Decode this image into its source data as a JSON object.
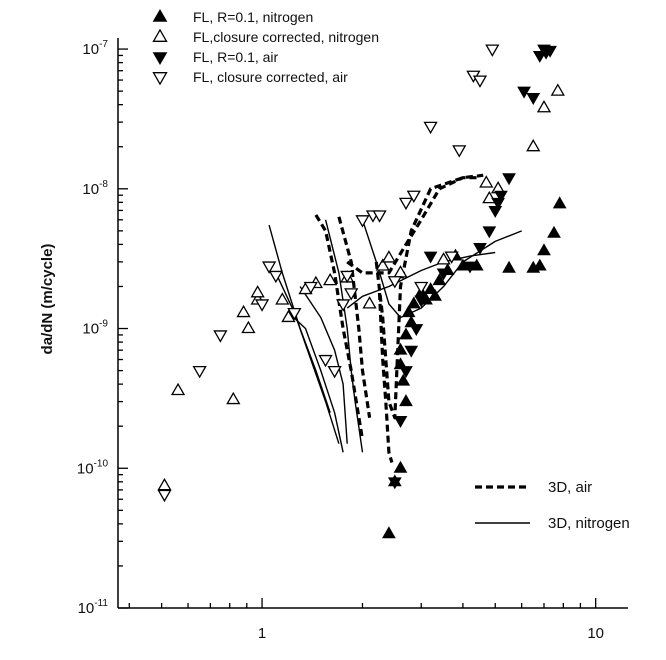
{
  "chart_data": {
    "type": "scatter",
    "title": "",
    "xlabel": "",
    "ylabel": "da/dN (m/cycle)",
    "xscale": "log",
    "yscale": "log",
    "xlim": [
      0.37,
      12.5
    ],
    "ylim": [
      1e-11,
      1.2e-07
    ],
    "x_ticks": [
      {
        "value": 1,
        "label": "1"
      },
      {
        "value": 10,
        "label": "10"
      }
    ],
    "y_ticks": [
      {
        "value": 1e-11,
        "base": "10",
        "exp": "-11"
      },
      {
        "value": 1e-10,
        "base": "10",
        "exp": "-10"
      },
      {
        "value": 1e-09,
        "base": "10",
        "exp": "-9"
      },
      {
        "value": 1e-08,
        "base": "10",
        "exp": "-8"
      },
      {
        "value": 1e-07,
        "base": "10",
        "exp": "-7"
      }
    ],
    "grid": false,
    "legend_placement": "top-left",
    "series": [
      {
        "name": "FL, R=0.1, nitrogen",
        "marker": "triangle-up-filled",
        "points": [
          [
            2.4,
            3.4e-11
          ],
          [
            2.5,
            8e-11
          ],
          [
            2.6,
            1e-10
          ],
          [
            2.65,
            4.2e-10
          ],
          [
            2.7,
            3e-10
          ],
          [
            2.6,
            5.5e-10
          ],
          [
            2.6,
            7e-10
          ],
          [
            2.7,
            9e-10
          ],
          [
            2.8,
            1.1e-09
          ],
          [
            2.75,
            1.3e-09
          ],
          [
            2.85,
            1.5e-09
          ],
          [
            3.0,
            1.8e-09
          ],
          [
            3.1,
            1.6e-09
          ],
          [
            3.2,
            1.9e-09
          ],
          [
            3.3,
            1.7e-09
          ],
          [
            3.4,
            2.2e-09
          ],
          [
            3.6,
            2.6e-09
          ],
          [
            3.8,
            3.3e-09
          ],
          [
            4.0,
            2.8e-09
          ],
          [
            4.4,
            2.8e-09
          ],
          [
            5.5,
            2.7e-09
          ],
          [
            6.5,
            2.7e-09
          ],
          [
            6.8,
            2.8e-09
          ],
          [
            7.0,
            3.6e-09
          ],
          [
            7.5,
            4.8e-09
          ],
          [
            7.8,
            7.8e-09
          ]
        ]
      },
      {
        "name": "FL,closure corrected, nitrogen",
        "marker": "triangle-up-open",
        "points": [
          [
            0.51,
            7.5e-11
          ],
          [
            0.56,
            3.6e-10
          ],
          [
            0.82,
            3.1e-10
          ],
          [
            0.88,
            1.3e-09
          ],
          [
            0.91,
            1e-09
          ],
          [
            0.97,
            1.6e-09
          ],
          [
            0.97,
            1.8e-09
          ],
          [
            1.15,
            1.6e-09
          ],
          [
            1.2,
            1.2e-09
          ],
          [
            1.35,
            1.9e-09
          ],
          [
            1.45,
            2.1e-09
          ],
          [
            1.6,
            2.2e-09
          ],
          [
            1.8,
            2.3e-09
          ],
          [
            2.1,
            1.5e-09
          ],
          [
            2.3,
            2.8e-09
          ],
          [
            2.4,
            3.2e-09
          ],
          [
            2.6,
            2.5e-09
          ],
          [
            3.5,
            3.1e-09
          ],
          [
            4.8,
            8.5e-09
          ],
          [
            4.7,
            1.1e-08
          ],
          [
            5.1,
            1e-08
          ],
          [
            6.5,
            2e-08
          ],
          [
            7.0,
            3.8e-08
          ],
          [
            7.7,
            5e-08
          ]
        ]
      },
      {
        "name": "FL, R=0.1, air",
        "marker": "triangle-down-filled",
        "points": [
          [
            2.5,
            8e-11
          ],
          [
            2.6,
            2.2e-10
          ],
          [
            2.7,
            5e-10
          ],
          [
            2.8,
            7e-10
          ],
          [
            2.9,
            1e-09
          ],
          [
            3.0,
            1.6e-09
          ],
          [
            3.2,
            3.3e-09
          ],
          [
            3.5,
            2.5e-09
          ],
          [
            4.2,
            2.8e-09
          ],
          [
            4.5,
            3.8e-09
          ],
          [
            4.8,
            5e-09
          ],
          [
            5.0,
            7e-09
          ],
          [
            5.1,
            8e-09
          ],
          [
            5.2,
            9e-09
          ],
          [
            5.5,
            1.2e-08
          ],
          [
            6.1,
            5e-08
          ],
          [
            6.5,
            4.5e-08
          ],
          [
            6.8,
            9e-08
          ],
          [
            7.0,
            1e-07
          ],
          [
            7.1,
            9.5e-08
          ],
          [
            7.3,
            9.8e-08
          ]
        ]
      },
      {
        "name": "FL, closure corrected, air",
        "marker": "triangle-down-open",
        "points": [
          [
            0.51,
            6.5e-11
          ],
          [
            0.65,
            5e-10
          ],
          [
            0.75,
            9e-10
          ],
          [
            1.0,
            1.5e-09
          ],
          [
            1.05,
            2.8e-09
          ],
          [
            1.1,
            2.4e-09
          ],
          [
            1.25,
            1.3e-09
          ],
          [
            1.4,
            2e-09
          ],
          [
            1.55,
            6e-10
          ],
          [
            1.65,
            5e-10
          ],
          [
            1.75,
            1.5e-09
          ],
          [
            1.8,
            2.4e-09
          ],
          [
            1.85,
            1.8e-09
          ],
          [
            2.0,
            6e-09
          ],
          [
            2.15,
            6.5e-09
          ],
          [
            2.25,
            6.5e-09
          ],
          [
            2.5,
            2.2e-09
          ],
          [
            2.7,
            8e-09
          ],
          [
            2.85,
            9e-09
          ],
          [
            3.0,
            2e-09
          ],
          [
            3.2,
            2.8e-08
          ],
          [
            3.7,
            3.3e-09
          ],
          [
            3.9,
            1.9e-08
          ],
          [
            4.3,
            6.5e-08
          ],
          [
            4.5,
            6e-08
          ],
          [
            4.9,
            1e-07
          ]
        ]
      }
    ],
    "curves": [
      {
        "name": "3D, air",
        "style": "dashed",
        "lines": [
          [
            [
              1.45,
              6.5e-09
            ],
            [
              1.55,
              5e-09
            ],
            [
              1.65,
              2.5e-09
            ],
            [
              1.75,
              1e-09
            ],
            [
              1.85,
              5e-10
            ],
            [
              2.0,
              1.6e-10
            ]
          ],
          [
            [
              1.7,
              6.3e-09
            ],
            [
              1.85,
              3e-09
            ],
            [
              1.95,
              1e-09
            ],
            [
              2.0,
              5e-10
            ],
            [
              2.1,
              2.3e-10
            ]
          ],
          [
            [
              2.25,
              1.8e-09
            ],
            [
              2.3,
              6e-10
            ],
            [
              2.35,
              3e-10
            ],
            [
              2.4,
              1.3e-10
            ],
            [
              2.45,
              1.1e-10
            ]
          ],
          [
            [
              2.2,
              3e-09
            ],
            [
              2.3,
              1.2e-09
            ],
            [
              2.35,
              6e-10
            ],
            [
              2.4,
              3e-10
            ],
            [
              2.5,
              2.3e-10
            ],
            [
              2.6,
              2e-09
            ],
            [
              2.8,
              5e-09
            ],
            [
              3.2,
              1e-08
            ],
            [
              4.0,
              1.2e-08
            ],
            [
              4.6,
              1.25e-08
            ]
          ],
          [
            [
              1.8,
              3e-09
            ],
            [
              2.0,
              2.5e-09
            ],
            [
              2.4,
              2.5e-09
            ],
            [
              2.7,
              4e-09
            ],
            [
              3.0,
              6e-09
            ],
            [
              3.4,
              1e-08
            ],
            [
              4.0,
              1.2e-08
            ],
            [
              4.5,
              1.2e-08
            ]
          ]
        ]
      },
      {
        "name": "3D, nitrogen",
        "style": "solid",
        "lines": [
          [
            [
              1.05,
              5.5e-09
            ],
            [
              1.15,
              2.5e-09
            ],
            [
              1.3,
              1e-09
            ],
            [
              1.45,
              5e-10
            ],
            [
              1.6,
              2.5e-10
            ]
          ],
          [
            [
              1.1,
              2.5e-09
            ],
            [
              1.25,
              1.3e-09
            ],
            [
              1.4,
              6e-10
            ],
            [
              1.55,
              3e-10
            ],
            [
              1.7,
              1.5e-10
            ]
          ],
          [
            [
              1.2,
              1.3e-09
            ],
            [
              1.35,
              1e-09
            ],
            [
              1.5,
              5e-10
            ],
            [
              1.65,
              2.5e-10
            ],
            [
              1.75,
              1.3e-10
            ]
          ],
          [
            [
              1.3,
              2e-09
            ],
            [
              1.5,
              1.2e-09
            ],
            [
              1.65,
              7e-10
            ],
            [
              1.75,
              4e-10
            ],
            [
              1.8,
              1.5e-10
            ]
          ],
          [
            [
              1.55,
              6e-09
            ],
            [
              1.7,
              2.5e-09
            ],
            [
              1.8,
              1e-09
            ],
            [
              1.85,
              5e-10
            ],
            [
              1.9,
              3e-10
            ],
            [
              2.0,
              1.3e-10
            ]
          ],
          [
            [
              2.0,
              6e-09
            ],
            [
              2.2,
              3e-09
            ],
            [
              2.4,
              1.5e-09
            ],
            [
              2.6,
              1.2e-09
            ],
            [
              3.0,
              1.4e-09
            ],
            [
              3.5,
              2e-09
            ],
            [
              4.0,
              3e-09
            ],
            [
              5.0,
              4.2e-09
            ],
            [
              6.0,
              5e-09
            ]
          ],
          [
            [
              1.8,
              1.4e-09
            ],
            [
              2.0,
              1.7e-09
            ],
            [
              2.4,
              2e-09
            ],
            [
              3.0,
              2.6e-09
            ],
            [
              3.5,
              3e-09
            ],
            [
              4.2,
              3.3e-09
            ],
            [
              5.0,
              3.5e-09
            ]
          ]
        ]
      }
    ]
  }
}
